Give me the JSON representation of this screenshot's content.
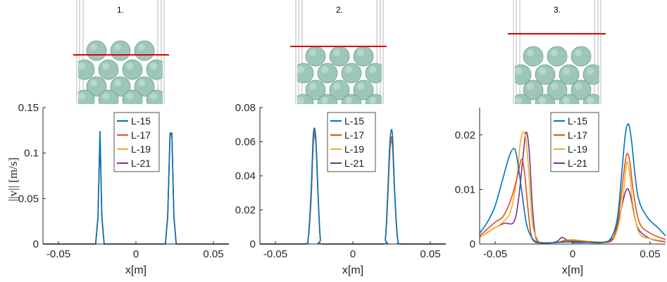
{
  "ylabel": "||v|| [m/s]",
  "colors": {
    "L-15": "#0072BD",
    "L-17": "#D95319",
    "L-19": "#EDB120",
    "L-21": "#7E2F8E",
    "surface_line": "#e00000",
    "sphere": "#9cc7b8",
    "sphere_edge": "#6f9a8a"
  },
  "chart_data": [
    {
      "type": "line",
      "panel_label": "1.",
      "xlabel": "x[m]",
      "ylabel": "||v|| [m/s]",
      "xlim": [
        -0.06,
        0.06
      ],
      "ylim": [
        0,
        0.15
      ],
      "xticks": [
        -0.05,
        0,
        0.05
      ],
      "xtick_labels": [
        "-0.05",
        "0",
        "0.05"
      ],
      "yticks": [
        0,
        0.05,
        0.1,
        0.15
      ],
      "ytick_labels": [
        "0",
        "0.05",
        "0.1",
        "0.15"
      ],
      "legend_location": "top-right",
      "series": [
        {
          "name": "L-15",
          "x": [
            -0.06,
            -0.026,
            -0.0245,
            -0.0232,
            -0.022,
            -0.0205,
            -0.019,
            0.019,
            0.0205,
            0.022,
            0.0232,
            0.0245,
            0.026,
            0.06
          ],
          "y": [
            0,
            0,
            0.03,
            0.124,
            0.03,
            0,
            0,
            0,
            0.03,
            0.122,
            0.122,
            0.03,
            0,
            0
          ]
        },
        {
          "name": "L-17",
          "x": [
            -0.06,
            -0.026,
            -0.0245,
            -0.0232,
            -0.022,
            -0.0205,
            -0.019,
            0.019,
            0.0205,
            0.022,
            0.0232,
            0.0245,
            0.026,
            0.06
          ],
          "y": [
            0,
            0,
            0.03,
            0.123,
            0.03,
            0,
            0,
            0,
            0.03,
            0.121,
            0.121,
            0.03,
            0,
            0
          ]
        },
        {
          "name": "L-19",
          "x": [
            -0.06,
            -0.026,
            -0.0245,
            -0.0232,
            -0.022,
            -0.0205,
            -0.019,
            0.019,
            0.0205,
            0.022,
            0.0232,
            0.0245,
            0.026,
            0.06
          ],
          "y": [
            0,
            0,
            0.03,
            0.122,
            0.03,
            0,
            0,
            0,
            0.03,
            0.12,
            0.12,
            0.03,
            0,
            0
          ]
        },
        {
          "name": "L-21",
          "x": [
            -0.06,
            -0.026,
            -0.0245,
            -0.0232,
            -0.022,
            -0.0205,
            -0.019,
            0.019,
            0.0205,
            0.022,
            0.0232,
            0.0245,
            0.026,
            0.06
          ],
          "y": [
            0,
            0,
            0.03,
            0.121,
            0.03,
            0,
            0,
            0,
            0.03,
            0.119,
            0.119,
            0.03,
            0,
            0
          ]
        }
      ]
    },
    {
      "type": "line",
      "panel_label": "2.",
      "xlabel": "x[m]",
      "xlim": [
        -0.06,
        0.06
      ],
      "ylim": [
        0,
        0.08
      ],
      "xticks": [
        -0.05,
        0,
        0.05
      ],
      "xtick_labels": [
        "-0.05",
        "0",
        "0.05"
      ],
      "yticks": [
        0,
        0.02,
        0.04,
        0.06,
        0.08
      ],
      "ytick_labels": [
        "0",
        "0.02",
        "0.04",
        "0.06",
        "0.08"
      ],
      "legend_location": "top-right",
      "series": [
        {
          "name": "L-15",
          "x": [
            -0.06,
            -0.032,
            -0.029,
            -0.027,
            -0.0255,
            -0.024,
            -0.0225,
            -0.021,
            -0.019,
            0.019,
            0.021,
            0.0225,
            0.024,
            0.0255,
            0.027,
            0.029,
            0.032,
            0.06
          ],
          "y": [
            0,
            0,
            0.002,
            0.03,
            0.0645,
            0.063,
            0.03,
            0.003,
            0,
            0,
            0.003,
            0.03,
            0.061,
            0.0645,
            0.03,
            0.002,
            0,
            0
          ]
        },
        {
          "name": "L-17",
          "x": [
            -0.06,
            -0.032,
            -0.029,
            -0.027,
            -0.0255,
            -0.024,
            -0.0225,
            -0.021,
            -0.019,
            0.019,
            0.021,
            0.0225,
            0.024,
            0.0255,
            0.027,
            0.029,
            0.032,
            0.06
          ],
          "y": [
            0,
            0,
            0.002,
            0.028,
            0.061,
            0.063,
            0.03,
            0.003,
            0,
            0,
            0.003,
            0.028,
            0.058,
            0.06,
            0.03,
            0.002,
            0,
            0
          ]
        },
        {
          "name": "L-19",
          "x": [
            -0.06,
            -0.032,
            -0.029,
            -0.027,
            -0.0255,
            -0.024,
            -0.0225,
            -0.021,
            -0.019,
            0.019,
            0.021,
            0.0225,
            0.024,
            0.0255,
            0.027,
            0.029,
            0.032,
            0.06
          ],
          "y": [
            0,
            0,
            0.002,
            0.026,
            0.06,
            0.062,
            0.03,
            0.003,
            0,
            0,
            0.003,
            0.027,
            0.057,
            0.059,
            0.03,
            0.002,
            0,
            0
          ]
        },
        {
          "name": "L-21",
          "x": [
            -0.06,
            -0.032,
            -0.029,
            -0.027,
            -0.0255,
            -0.024,
            -0.0225,
            -0.021,
            -0.019,
            0.019,
            0.021,
            0.0225,
            0.024,
            0.0255,
            0.027,
            0.029,
            0.032,
            0.06
          ],
          "y": [
            0,
            0,
            0.002,
            0.025,
            0.059,
            0.061,
            0.029,
            0.003,
            0,
            0,
            0.003,
            0.026,
            0.056,
            0.058,
            0.029,
            0.002,
            0,
            0
          ]
        }
      ]
    },
    {
      "type": "line",
      "panel_label": "3.",
      "xlabel": "x[m]",
      "xlim": [
        -0.06,
        0.06
      ],
      "ylim": [
        0,
        0.025
      ],
      "xticks": [
        -0.05,
        0,
        0.05
      ],
      "xtick_labels": [
        "-0.05",
        "0",
        "0.05"
      ],
      "yticks": [
        0,
        0.01,
        0.02
      ],
      "ytick_labels": [
        "0",
        "0.01",
        "0.02"
      ],
      "legend_location": "top-center",
      "series": [
        {
          "name": "L-15",
          "x": [
            -0.06,
            -0.055,
            -0.05,
            -0.045,
            -0.041,
            -0.038,
            -0.036,
            -0.033,
            -0.03,
            -0.027,
            -0.024,
            -0.02,
            -0.015,
            -0.01,
            0,
            0.01,
            0.02,
            0.025,
            0.029,
            0.032,
            0.034,
            0.036,
            0.038,
            0.042,
            0.048,
            0.055,
            0.06
          ],
          "y": [
            0.002,
            0.004,
            0.007,
            0.012,
            0.016,
            0.0175,
            0.016,
            0.01,
            0.004,
            0.0015,
            0.0005,
            0.0002,
            0.0002,
            0.0003,
            0.0004,
            0.0003,
            0.0003,
            0.0012,
            0.005,
            0.014,
            0.02,
            0.022,
            0.019,
            0.009,
            0.005,
            0.003,
            0.0015
          ]
        },
        {
          "name": "L-17",
          "x": [
            -0.06,
            -0.05,
            -0.045,
            -0.04,
            -0.036,
            -0.033,
            -0.031,
            -0.029,
            -0.027,
            -0.025,
            -0.022,
            -0.018,
            -0.01,
            -0.005,
            0,
            0.01,
            0.02,
            0.026,
            0.03,
            0.033,
            0.035,
            0.037,
            0.039,
            0.043,
            0.05,
            0.06
          ],
          "y": [
            0.0015,
            0.004,
            0.005,
            0.008,
            0.012,
            0.0155,
            0.013,
            0.007,
            0.002,
            0.0005,
            0.0002,
            0.0002,
            0.0003,
            0.0006,
            0.0006,
            0.0004,
            0.0003,
            0.001,
            0.006,
            0.013,
            0.0165,
            0.015,
            0.01,
            0.004,
            0.002,
            0.0008
          ]
        },
        {
          "name": "L-19",
          "x": [
            -0.06,
            -0.05,
            -0.045,
            -0.04,
            -0.036,
            -0.034,
            -0.032,
            -0.03,
            -0.028,
            -0.026,
            -0.023,
            -0.02,
            -0.01,
            -0.005,
            0,
            0.01,
            0.02,
            0.026,
            0.03,
            0.033,
            0.035,
            0.037,
            0.039,
            0.043,
            0.05,
            0.06
          ],
          "y": [
            0.0012,
            0.003,
            0.004,
            0.006,
            0.012,
            0.018,
            0.0205,
            0.019,
            0.012,
            0.004,
            0.001,
            0.0003,
            0.0003,
            0.0007,
            0.0008,
            0.0005,
            0.0004,
            0.0008,
            0.004,
            0.01,
            0.015,
            0.0125,
            0.007,
            0.002,
            0.001,
            0.0005
          ]
        },
        {
          "name": "L-21",
          "x": [
            -0.06,
            -0.05,
            -0.044,
            -0.038,
            -0.035,
            -0.032,
            -0.03,
            -0.028,
            -0.026,
            -0.024,
            -0.021,
            -0.015,
            -0.01,
            -0.007,
            -0.004,
            0,
            0.01,
            0.02,
            0.027,
            0.031,
            0.034,
            0.036,
            0.038,
            0.042,
            0.05,
            0.06
          ],
          "y": [
            0.0012,
            0.003,
            0.0038,
            0.004,
            0.008,
            0.016,
            0.0205,
            0.017,
            0.007,
            0.0015,
            0.0003,
            0.0002,
            0.0005,
            0.0012,
            0.0008,
            0.0003,
            0.0003,
            0.0003,
            0.0015,
            0.006,
            0.0095,
            0.01,
            0.008,
            0.003,
            0.001,
            0.0004
          ]
        }
      ]
    }
  ]
}
